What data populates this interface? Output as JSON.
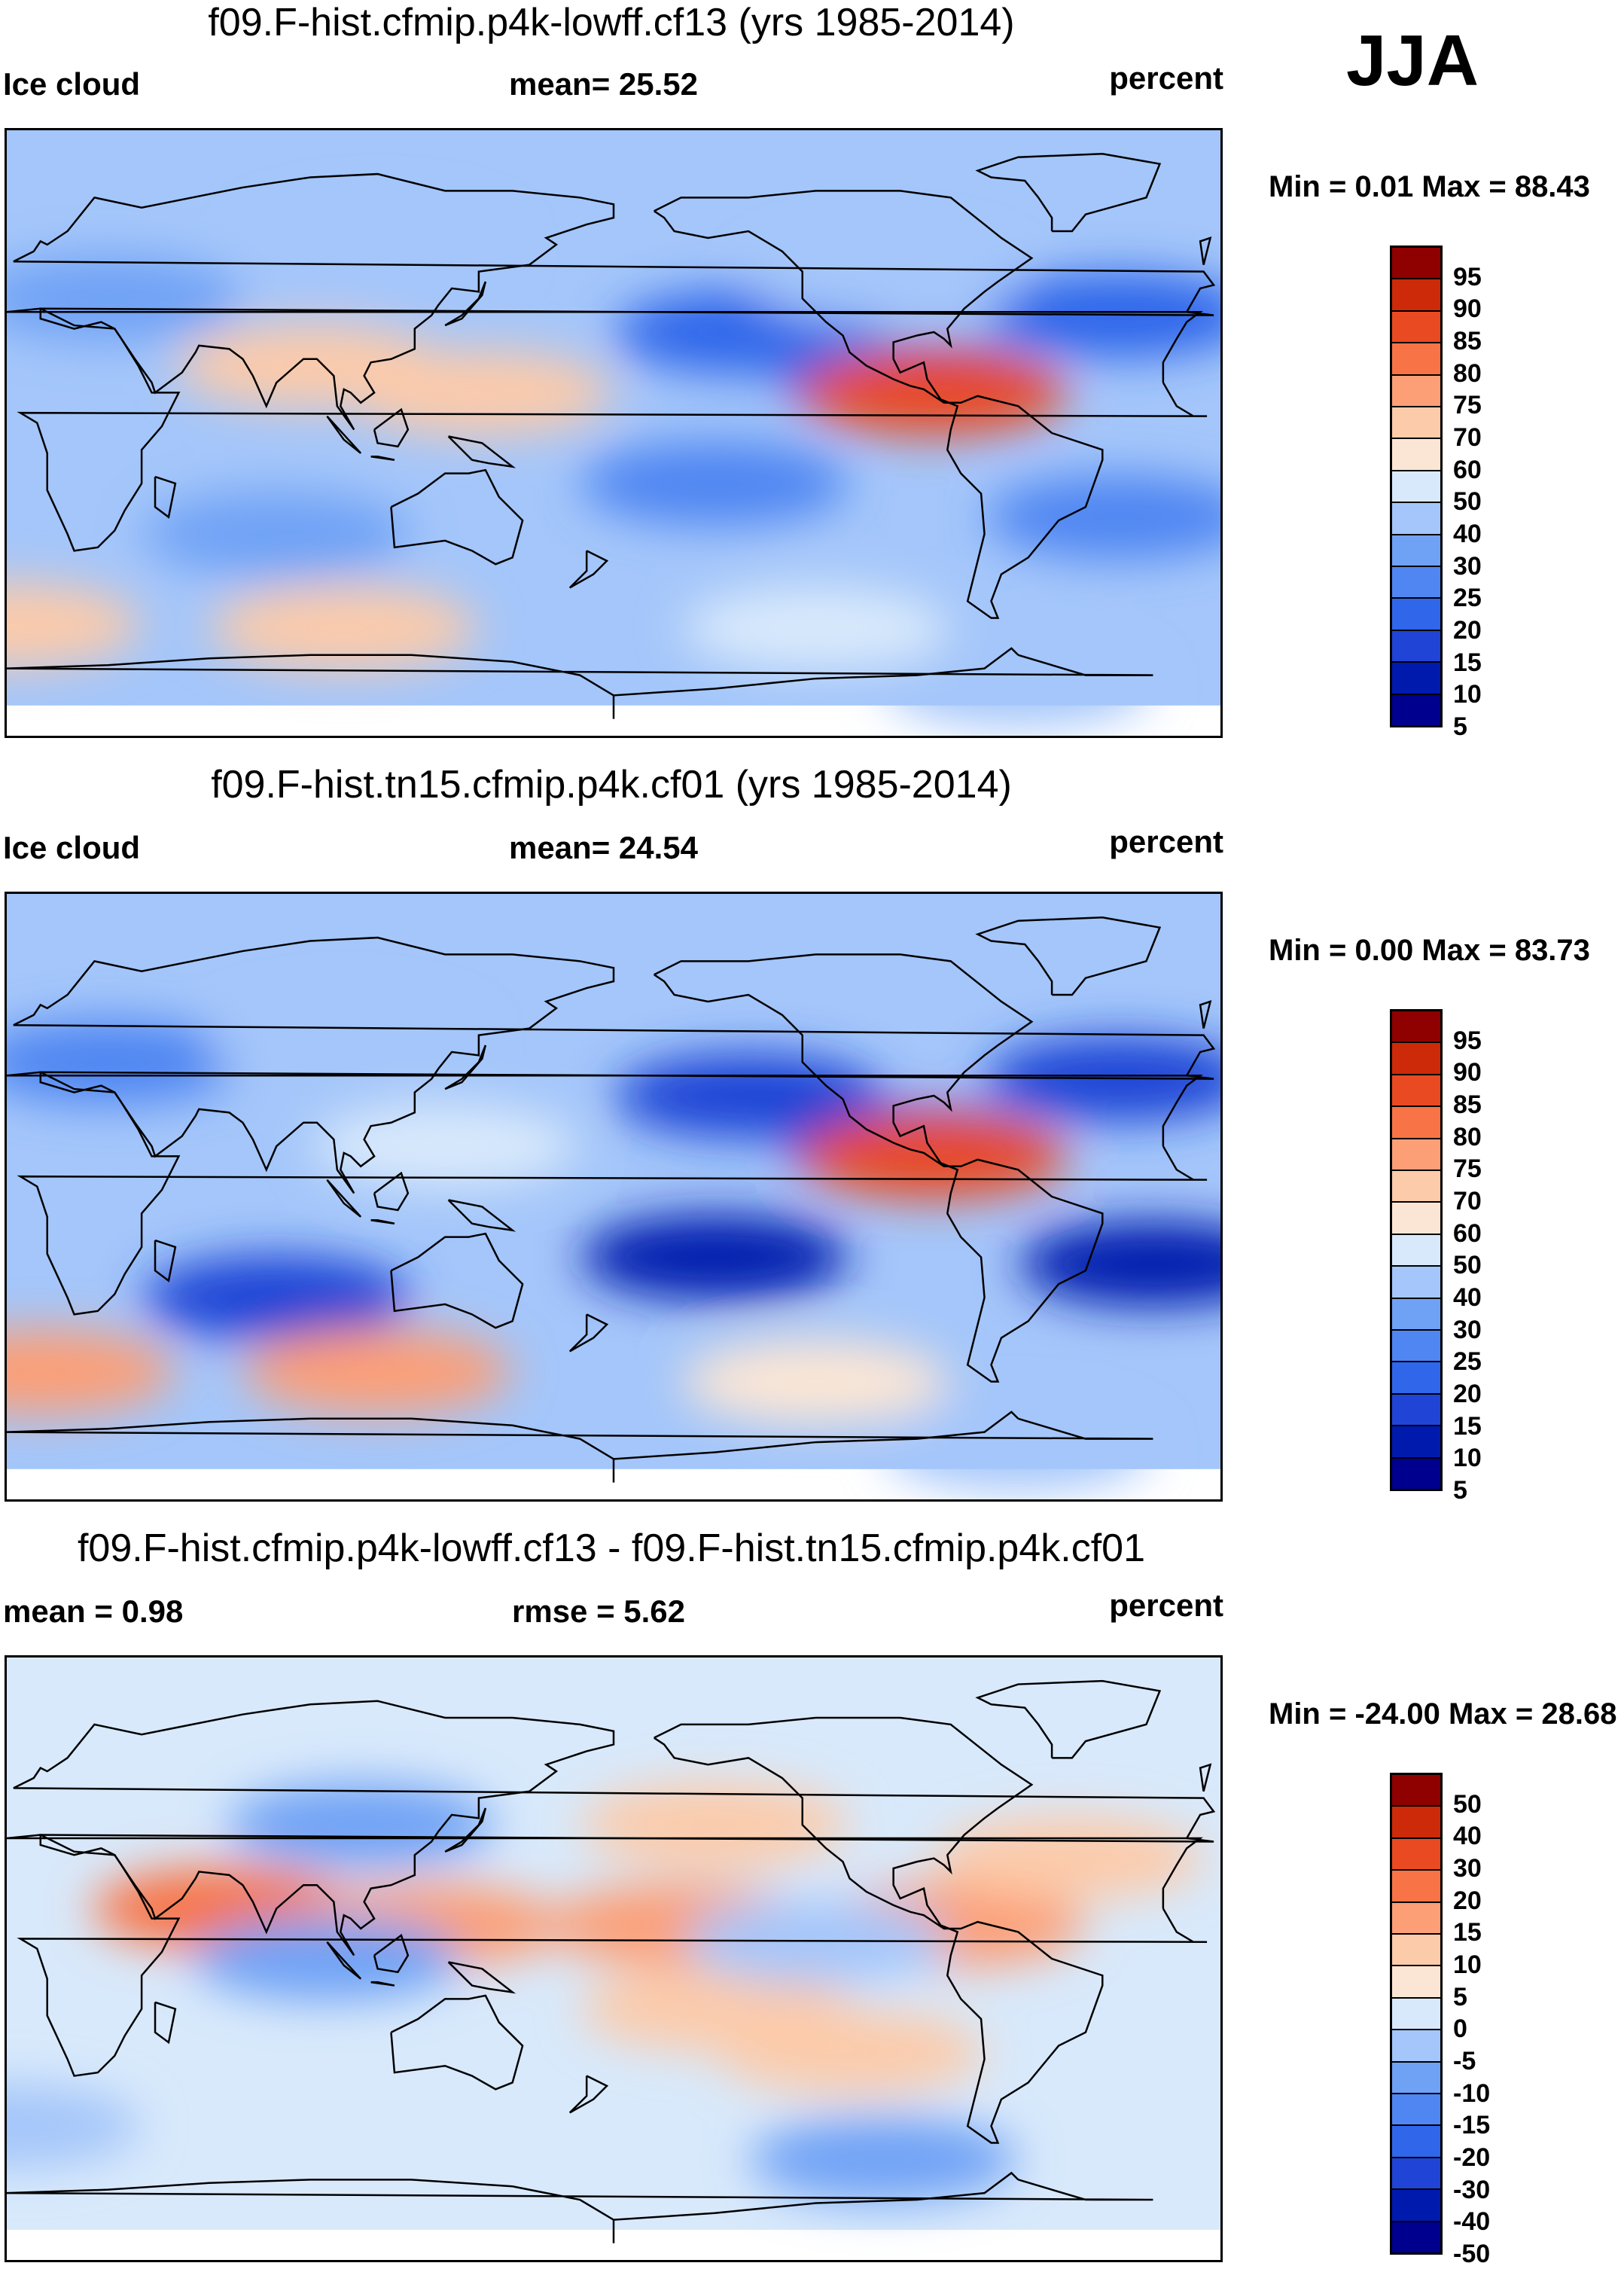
{
  "season": "JJA",
  "palettes": {
    "sequential": [
      "#00008f",
      "#001aae",
      "#1f44d6",
      "#2f66ea",
      "#4f86f2",
      "#6fa2f5",
      "#a4c6fa",
      "#d8e9fb",
      "#fbe6d5",
      "#fccbaa",
      "#fc9f77",
      "#f87447",
      "#e94a22",
      "#cc2a09",
      "#8f0000"
    ],
    "diverging": [
      "#00008f",
      "#001aae",
      "#1f44d6",
      "#2f66ea",
      "#4f86f2",
      "#6fa2f5",
      "#a4c6fa",
      "#d8e9fb",
      "#fbe6d5",
      "#fccbaa",
      "#fc9f77",
      "#f87447",
      "#e94a22",
      "#cc2a09",
      "#8f0000"
    ]
  },
  "chart_data": [
    {
      "type": "heatmap",
      "title": "f09.F-hist.cfmip.p4k-lowff.cf13 (yrs 1985-2014)",
      "variable": "Ice cloud",
      "stat_text": "mean=  25.52",
      "units": "percent",
      "minmax": "Min =    0.01 Max =  88.43",
      "mean": 25.52,
      "min": 0.01,
      "max": 88.43,
      "colorbar_levels": [
        "95",
        "90",
        "85",
        "80",
        "75",
        "70",
        "60",
        "50",
        "40",
        "30",
        "25",
        "20",
        "15",
        "10",
        "5"
      ],
      "fields": [
        {
          "lon": -90,
          "lat": 15,
          "v": 2
        },
        {
          "lon": -140,
          "lat": 30,
          "v": 3
        },
        {
          "lon": -150,
          "lat": -15,
          "v": 4
        },
        {
          "lon": -30,
          "lat": -25,
          "v": 4
        },
        {
          "lon": -30,
          "lat": 35,
          "v": 3
        },
        {
          "lon": 80,
          "lat": -30,
          "v": 5
        },
        {
          "lon": 30,
          "lat": 40,
          "v": 5
        },
        {
          "lon": -100,
          "lat": 45,
          "v": 6
        },
        {
          "lon": 110,
          "lat": 55,
          "v": 6
        },
        {
          "lon": 90,
          "lat": 20,
          "v": 9
        },
        {
          "lon": 140,
          "lat": 12,
          "v": 9
        },
        {
          "lon": -85,
          "lat": 12,
          "v": 12
        },
        {
          "lon": 0,
          "lat": -57,
          "v": 9
        },
        {
          "lon": 100,
          "lat": -58,
          "v": 9
        },
        {
          "lon": -120,
          "lat": -58,
          "v": 7
        },
        {
          "lon": -60,
          "lat": -75,
          "v": 6
        }
      ]
    },
    {
      "type": "heatmap",
      "title": "f09.F-hist.tn15.cfmip.p4k.cf01 (yrs 1985-2014)",
      "variable": "Ice cloud",
      "stat_text": "mean=  24.54",
      "units": "percent",
      "minmax": "Min =    0.00 Max =  83.73",
      "mean": 24.54,
      "min": 0.0,
      "max": 83.73,
      "colorbar_levels": [
        "95",
        "90",
        "85",
        "80",
        "75",
        "70",
        "60",
        "50",
        "40",
        "30",
        "25",
        "20",
        "15",
        "10",
        "5"
      ],
      "fields": [
        {
          "lon": -90,
          "lat": 15,
          "v": 2
        },
        {
          "lon": -140,
          "lat": 30,
          "v": 2
        },
        {
          "lon": -150,
          "lat": -18,
          "v": 1
        },
        {
          "lon": -20,
          "lat": -20,
          "v": 1
        },
        {
          "lon": 80,
          "lat": -30,
          "v": 2
        },
        {
          "lon": -30,
          "lat": 35,
          "v": 2
        },
        {
          "lon": 30,
          "lat": 40,
          "v": 4
        },
        {
          "lon": 100,
          "lat": 45,
          "v": 6
        },
        {
          "lon": 130,
          "lat": 15,
          "v": 7
        },
        {
          "lon": -85,
          "lat": 12,
          "v": 12
        },
        {
          "lon": 10,
          "lat": -52,
          "v": 10
        },
        {
          "lon": 110,
          "lat": -52,
          "v": 10
        },
        {
          "lon": -120,
          "lat": -55,
          "v": 8
        },
        {
          "lon": -60,
          "lat": -75,
          "v": 6
        }
      ]
    },
    {
      "type": "heatmap",
      "title": "f09.F-hist.cfmip.p4k-lowff.cf13 - f09.F-hist.tn15.cfmip.p4k.cf01",
      "stat_left": "mean =    0.98",
      "stat_mid": "rmse =    5.62",
      "units": "percent",
      "minmax": "Min = -24.00 Max =  28.68",
      "mean": 0.98,
      "rmse": 5.62,
      "min": -24.0,
      "max": 28.68,
      "colorbar_levels": [
        "50",
        "40",
        "30",
        "20",
        "15",
        "10",
        "5",
        "0",
        "-5",
        "-10",
        "-15",
        "-20",
        "-30",
        "-40",
        "-50"
      ],
      "fields": [
        {
          "lon": 65,
          "lat": 15,
          "v": 11
        },
        {
          "lon": 125,
          "lat": 10,
          "v": 10
        },
        {
          "lon": -160,
          "lat": 10,
          "v": 10
        },
        {
          "lon": -150,
          "lat": -15,
          "v": 9
        },
        {
          "lon": -110,
          "lat": -28,
          "v": 9
        },
        {
          "lon": -80,
          "lat": 10,
          "v": 10
        },
        {
          "lon": -150,
          "lat": 40,
          "v": 9
        },
        {
          "lon": -45,
          "lat": 30,
          "v": 9
        },
        {
          "lon": 95,
          "lat": 0,
          "v": 5
        },
        {
          "lon": 105,
          "lat": 40,
          "v": 5
        },
        {
          "lon": -120,
          "lat": 5,
          "v": 6
        },
        {
          "lon": 0,
          "lat": -50,
          "v": 6
        },
        {
          "lon": -100,
          "lat": -60,
          "v": 5
        }
      ]
    }
  ]
}
